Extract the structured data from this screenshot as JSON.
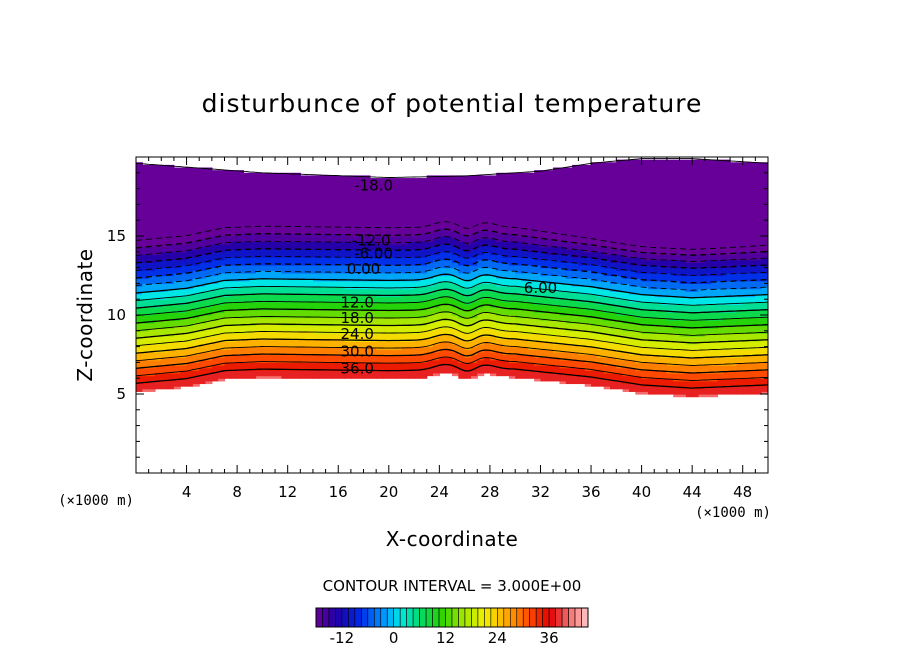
{
  "chart_data": {
    "type": "contour",
    "title": "disturbunce of potential temperature",
    "xlabel": "X-coordinate",
    "ylabel": "Z-coordinate",
    "x_unit": "(×1000 m)",
    "x_range": [
      0,
      50
    ],
    "y_range": [
      0,
      20
    ],
    "x_ticks": [
      4,
      8,
      12,
      16,
      20,
      24,
      28,
      32,
      36,
      40,
      44,
      48
    ],
    "y_ticks": [
      5,
      10,
      15
    ],
    "contour_interval_text": "CONTOUR INTERVAL = 3.000E+00",
    "contour_interval": 3.0,
    "contour_labels": [
      {
        "text": "-18.0",
        "x": 18.8,
        "z": 18.2
      },
      {
        "text": "-12.0",
        "x": 18.6,
        "z": 14.7
      },
      {
        "text": "-6.00",
        "x": 18.8,
        "z": 13.9
      },
      {
        "text": "0.00",
        "x": 18.0,
        "z": 12.9
      },
      {
        "text": "6.00",
        "x": 32.0,
        "z": 11.7
      },
      {
        "text": "12.0",
        "x": 17.5,
        "z": 10.8
      },
      {
        "text": "18.0",
        "x": 17.5,
        "z": 9.8
      },
      {
        "text": "24.0",
        "x": 17.5,
        "z": 8.8
      },
      {
        "text": "30.0",
        "x": 17.5,
        "z": 7.7
      },
      {
        "text": "36.0",
        "x": 17.5,
        "z": 6.6
      }
    ],
    "colorbar": {
      "min": -18,
      "max": 45,
      "ticks": [
        -12,
        0,
        12,
        24,
        36
      ]
    },
    "field_note": "positive anomaly near z=5-8 km, negative anomaly near z=15-19 km"
  }
}
